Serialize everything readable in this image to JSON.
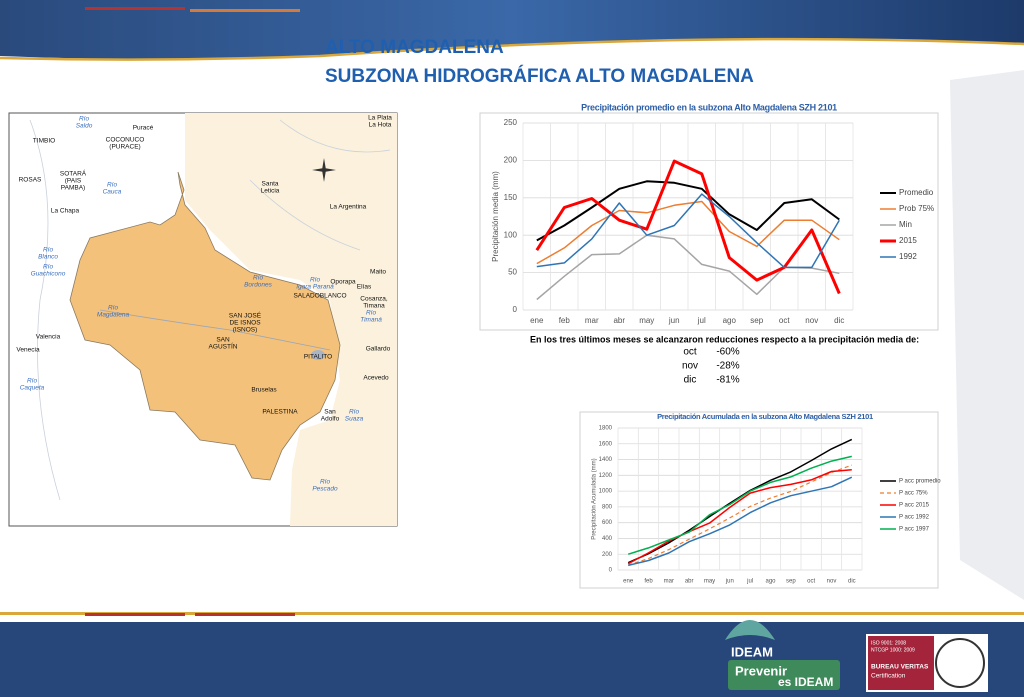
{
  "header": {
    "title": "ALTO MAGDALENA",
    "subtitle": "SUBZONA HIDROGRÁFICA ALTO MAGDALENA"
  },
  "map_labels": [
    {
      "lines": [
        "Río",
        "Saldo"
      ],
      "kind": "river"
    },
    {
      "lines": [
        "Puracé"
      ],
      "kind": "town"
    },
    {
      "lines": [
        "TIMBIO"
      ],
      "kind": "town"
    },
    {
      "lines": [
        "COCONUCO",
        "(PURACE)"
      ],
      "kind": "town"
    },
    {
      "lines": [
        "SOTARÁ",
        "(PAIS",
        "PAMBA)"
      ],
      "kind": "town"
    },
    {
      "lines": [
        "ROSAS"
      ],
      "kind": "town"
    },
    {
      "lines": [
        "Río",
        "Cauca"
      ],
      "kind": "river"
    },
    {
      "lines": [
        "La Chapa"
      ],
      "kind": "town"
    },
    {
      "lines": [
        "Río",
        "Blanco"
      ],
      "kind": "river"
    },
    {
      "lines": [
        "Río",
        "Guachicono"
      ],
      "kind": "river"
    },
    {
      "lines": [
        "Valencia"
      ],
      "kind": "town"
    },
    {
      "lines": [
        "Venecia"
      ],
      "kind": "town"
    },
    {
      "lines": [
        "Río",
        "Caqueta"
      ],
      "kind": "river"
    },
    {
      "lines": [
        "Río",
        "Magdalena"
      ],
      "kind": "river"
    },
    {
      "lines": [
        "SAN JOSÉ",
        "DE ISNOS",
        "(ISNOS)"
      ],
      "kind": "town"
    },
    {
      "lines": [
        "SAN",
        "AGUSTÍN"
      ],
      "kind": "town"
    },
    {
      "lines": [
        "Bruselas"
      ],
      "kind": "town"
    },
    {
      "lines": [
        "PALESTINA"
      ],
      "kind": "town"
    },
    {
      "lines": [
        "PITALITO"
      ],
      "kind": "town"
    },
    {
      "lines": [
        "San",
        "Adolfo"
      ],
      "kind": "town"
    },
    {
      "lines": [
        "Río",
        "Suaza"
      ],
      "kind": "river"
    },
    {
      "lines": [
        "Río",
        "Pescado"
      ],
      "kind": "river"
    },
    {
      "lines": [
        "Acevedo"
      ],
      "kind": "town"
    },
    {
      "lines": [
        "Gallardo"
      ],
      "kind": "town"
    },
    {
      "lines": [
        "Río",
        "Timaná"
      ],
      "kind": "river"
    },
    {
      "lines": [
        "Cosanza,",
        "Timana"
      ],
      "kind": "town"
    },
    {
      "lines": [
        "Elías"
      ],
      "kind": "town"
    },
    {
      "lines": [
        "Oporapa"
      ],
      "kind": "town"
    },
    {
      "lines": [
        "Maito"
      ],
      "kind": "town"
    },
    {
      "lines": [
        "Río",
        "Igara Paraná"
      ],
      "kind": "river"
    },
    {
      "lines": [
        "SALADOBLANCO"
      ],
      "kind": "town"
    },
    {
      "lines": [
        "Río",
        "Bordones"
      ],
      "kind": "river"
    },
    {
      "lines": [
        "La Argentina"
      ],
      "kind": "town"
    },
    {
      "lines": [
        "Santa",
        "Leticia"
      ],
      "kind": "town"
    },
    {
      "lines": [
        "La Plata",
        "La Hota"
      ],
      "kind": "town"
    }
  ],
  "chart_data": [
    {
      "type": "line",
      "title": "Precipitación promedio en la subzona  Alto Magdalena SZH 2101",
      "y_label": "Precipitación media  (mm)",
      "categories": [
        "ene",
        "feb",
        "mar",
        "abr",
        "may",
        "jun",
        "jul",
        "ago",
        "sep",
        "oct",
        "nov",
        "dic"
      ],
      "ylim": [
        0,
        250
      ],
      "yticks": [
        0,
        50,
        100,
        150,
        200,
        250
      ],
      "grid": true,
      "legend": "right",
      "series": [
        {
          "name": "Promedio",
          "color": "#000000",
          "width": 2,
          "values": [
            93,
            113,
            137,
            162,
            172,
            170,
            162,
            128,
            107,
            143,
            148,
            121
          ]
        },
        {
          "name": "Prob 75%",
          "color": "#ed7d31",
          "width": 1.5,
          "values": [
            62,
            83,
            113,
            133,
            130,
            140,
            145,
            105,
            85,
            120,
            120,
            94
          ]
        },
        {
          "name": "Min",
          "color": "#a5a5a5",
          "width": 1.5,
          "values": [
            14,
            45,
            74,
            75,
            100,
            95,
            61,
            52,
            21,
            57,
            56,
            49
          ]
        },
        {
          "name": "2015",
          "color": "#ff0000",
          "width": 3,
          "values": [
            80,
            137,
            149,
            120,
            108,
            199,
            182,
            70,
            40,
            57,
            107,
            22
          ]
        },
        {
          "name": "1992",
          "color": "#2e75b6",
          "width": 1.5,
          "values": [
            58,
            63,
            95,
            143,
            100,
            113,
            155,
            125,
            90,
            57,
            57,
            120
          ]
        }
      ]
    },
    {
      "type": "line",
      "title": "Precipitación Acumulada en la subzona Alto Magdalena SZH 2101",
      "y_label": "Precipitación Acumulada  (mm)",
      "categories": [
        "ene",
        "feb",
        "mar",
        "abr",
        "may",
        "jun",
        "jul",
        "ago",
        "sep",
        "oct",
        "nov",
        "dic"
      ],
      "ylim": [
        0,
        1800
      ],
      "yticks": [
        0,
        200,
        400,
        600,
        800,
        1000,
        1200,
        1400,
        1600,
        1800
      ],
      "grid": true,
      "legend": "right",
      "series": [
        {
          "name": "P acc promedio",
          "color": "#000000",
          "width": 1.5,
          "values": [
            93,
            206,
            343,
            505,
            677,
            847,
            1009,
            1137,
            1244,
            1387,
            1535,
            1656
          ]
        },
        {
          "name": "P acc 75%",
          "color": "#ed7d31",
          "width": 1.2,
          "dash": true,
          "values": [
            62,
            145,
            258,
            391,
            521,
            661,
            806,
            911,
            996,
            1116,
            1236,
            1330
          ]
        },
        {
          "name": "P acc 2015",
          "color": "#ff0000",
          "width": 1.5,
          "values": [
            80,
            217,
            366,
            486,
            594,
            793,
            975,
            1045,
            1085,
            1142,
            1249,
            1271
          ]
        },
        {
          "name": "P acc 1992",
          "color": "#2e75b6",
          "width": 1.5,
          "values": [
            58,
            121,
            216,
            359,
            459,
            572,
            727,
            852,
            942,
            999,
            1056,
            1176
          ]
        },
        {
          "name": "P acc 1997",
          "color": "#00b050",
          "width": 1.5,
          "values": [
            200,
            280,
            380,
            480,
            700,
            830,
            1000,
            1110,
            1180,
            1290,
            1380,
            1440
          ]
        }
      ]
    }
  ],
  "reduction": {
    "text": "En los tres últimos meses se alcanzaron reducciones respecto a la precipitación media de:",
    "rows": [
      [
        "oct",
        "-60%"
      ],
      [
        "nov",
        "-28%"
      ],
      [
        "dic",
        "-81%"
      ]
    ]
  },
  "footer": {
    "logo": "IDEAM",
    "slogan_1": "Prevenir",
    "slogan_2": "es IDEAM",
    "cert_1": "ISO 9001: 2008",
    "cert_2": "NTCGP 1000: 2009",
    "cert_3": "BUREAU VERITAS",
    "cert_4": "Certification"
  }
}
